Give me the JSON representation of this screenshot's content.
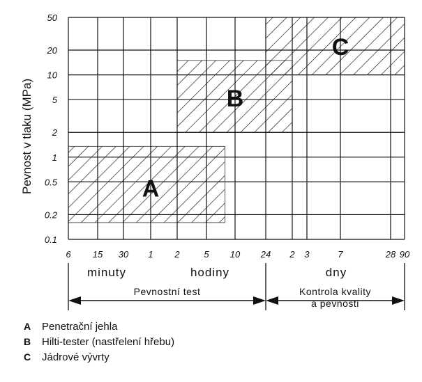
{
  "chart_data": {
    "type": "area",
    "ylabel": "Pevnost v tlaku (MPa)",
    "y_scale": "log",
    "ylim": [
      0.1,
      50
    ],
    "y_ticks": [
      0.1,
      0.2,
      0.5,
      1,
      2,
      5,
      10,
      20,
      50
    ],
    "y_tick_labels": [
      "0.1",
      "0.2",
      "0.5",
      "1",
      "2",
      "5",
      "10",
      "20",
      "50"
    ],
    "x_scale": "log (time)",
    "x_ticks_min": [
      6,
      15,
      30,
      60,
      120,
      300,
      600,
      1440,
      2880,
      4320,
      10080,
      40320,
      129600
    ],
    "x_tick_labels": [
      "6",
      "15",
      "30",
      "1",
      "2",
      "5",
      "10",
      "24",
      "2",
      "3",
      "7",
      "28",
      "90"
    ],
    "grid": true,
    "time_periods": [
      {
        "label": "minuty"
      },
      {
        "label": "hodiny"
      },
      {
        "label": "dny"
      }
    ],
    "test_ranges": [
      {
        "label": "Pevnostní test"
      },
      {
        "label_lines": [
          "Kontrola kvality",
          "a pevnosti"
        ]
      }
    ],
    "regions": [
      {
        "letter": "A",
        "x_from": 6,
        "x_to": 470,
        "y_from": 0.16,
        "y_to": 1.35
      },
      {
        "letter": "B",
        "x_from": 120,
        "x_to": 2880,
        "y_from": 2,
        "y_to": 15
      },
      {
        "letter": "C",
        "x_from": 1440,
        "x_to": 129600,
        "y_from": 10,
        "y_to": 50
      }
    ]
  },
  "legend": [
    {
      "key": "A",
      "text": "Penetrační jehla"
    },
    {
      "key": "B",
      "text": "Hilti-tester (nastřelení hřebu)"
    },
    {
      "key": "C",
      "text": "Jádrové vývrty"
    }
  ]
}
